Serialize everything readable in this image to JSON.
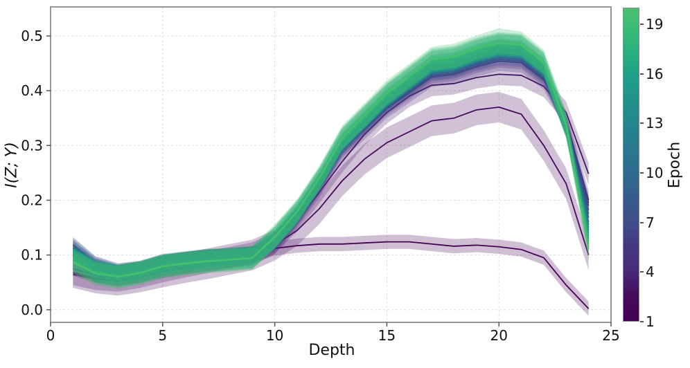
{
  "chart_data": {
    "type": "line",
    "title": "",
    "xlabel": "Depth",
    "ylabel": "I(Z; Y)",
    "xlim": [
      0,
      25
    ],
    "ylim": [
      -0.023,
      0.553
    ],
    "xticks": [
      0,
      5,
      10,
      15,
      20,
      25
    ],
    "yticks": [
      0.0,
      0.1,
      0.2,
      0.3,
      0.4,
      0.5
    ],
    "grid": true,
    "legend_position": "colorbar-right",
    "x": [
      1,
      2,
      3,
      4,
      5,
      6,
      7,
      8,
      9,
      10,
      11,
      12,
      13,
      14,
      15,
      16,
      17,
      18,
      19,
      20,
      21,
      22,
      23,
      24
    ],
    "series": [
      {
        "name": "Epoch 1",
        "epoch": 1,
        "color": "#440154",
        "band": 0.013,
        "values": [
          0.075,
          0.063,
          0.057,
          0.063,
          0.071,
          0.078,
          0.084,
          0.091,
          0.099,
          0.112,
          0.117,
          0.12,
          0.12,
          0.122,
          0.124,
          0.124,
          0.12,
          0.116,
          0.118,
          0.115,
          0.11,
          0.095,
          0.045,
          0.002
        ]
      },
      {
        "name": "Epoch 2",
        "epoch": 2,
        "color": "#46095b",
        "band": 0.028,
        "values": [
          0.068,
          0.058,
          0.054,
          0.06,
          0.069,
          0.077,
          0.084,
          0.092,
          0.1,
          0.118,
          0.145,
          0.185,
          0.235,
          0.275,
          0.305,
          0.325,
          0.345,
          0.35,
          0.365,
          0.37,
          0.357,
          0.3,
          0.23,
          0.1
        ]
      },
      {
        "name": "Epoch 3",
        "epoch": 3,
        "color": "#471365",
        "band": 0.02,
        "values": [
          0.065,
          0.056,
          0.053,
          0.06,
          0.07,
          0.079,
          0.087,
          0.095,
          0.103,
          0.122,
          0.163,
          0.215,
          0.27,
          0.32,
          0.36,
          0.39,
          0.41,
          0.413,
          0.424,
          0.43,
          0.428,
          0.408,
          0.36,
          0.248
        ]
      },
      {
        "name": "Epoch 4",
        "epoch": 4,
        "color": "#472a7a",
        "band": 0.018,
        "values": [
          0.09,
          0.068,
          0.061,
          0.068,
          0.08,
          0.086,
          0.091,
          0.094,
          0.098,
          0.12,
          0.167,
          0.224,
          0.291,
          0.329,
          0.368,
          0.396,
          0.425,
          0.43,
          0.444,
          0.454,
          0.451,
          0.42,
          0.345,
          0.2
        ]
      },
      {
        "name": "Epoch 5",
        "epoch": 5,
        "color": "#463480",
        "band": 0.015,
        "values": [
          0.105,
          0.075,
          0.065,
          0.071,
          0.083,
          0.089,
          0.094,
          0.096,
          0.1,
          0.121,
          0.168,
          0.226,
          0.293,
          0.332,
          0.37,
          0.399,
          0.428,
          0.433,
          0.447,
          0.457,
          0.454,
          0.423,
          0.342,
          0.195
        ]
      },
      {
        "name": "Epoch 6",
        "epoch": 6,
        "color": "#424086",
        "band": 0.014,
        "values": [
          0.113,
          0.08,
          0.068,
          0.074,
          0.086,
          0.091,
          0.096,
          0.098,
          0.101,
          0.122,
          0.169,
          0.227,
          0.295,
          0.334,
          0.373,
          0.402,
          0.431,
          0.436,
          0.45,
          0.46,
          0.457,
          0.426,
          0.34,
          0.19
        ]
      },
      {
        "name": "Epoch 7",
        "epoch": 7,
        "color": "#3d4c8a",
        "band": 0.014,
        "values": [
          0.119,
          0.084,
          0.071,
          0.076,
          0.088,
          0.093,
          0.097,
          0.099,
          0.102,
          0.123,
          0.17,
          0.229,
          0.297,
          0.336,
          0.375,
          0.404,
          0.433,
          0.438,
          0.453,
          0.463,
          0.46,
          0.429,
          0.338,
          0.182
        ]
      },
      {
        "name": "Epoch 8",
        "epoch": 8,
        "color": "#38568c",
        "band": 0.014,
        "values": [
          0.117,
          0.083,
          0.07,
          0.075,
          0.087,
          0.092,
          0.096,
          0.098,
          0.101,
          0.124,
          0.172,
          0.23,
          0.299,
          0.338,
          0.377,
          0.407,
          0.436,
          0.441,
          0.456,
          0.466,
          0.463,
          0.431,
          0.336,
          0.175
        ]
      },
      {
        "name": "Epoch 9",
        "epoch": 9,
        "color": "#33608d",
        "band": 0.014,
        "values": [
          0.112,
          0.08,
          0.068,
          0.074,
          0.086,
          0.091,
          0.095,
          0.097,
          0.1,
          0.125,
          0.172,
          0.231,
          0.3,
          0.34,
          0.379,
          0.409,
          0.438,
          0.443,
          0.458,
          0.468,
          0.465,
          0.433,
          0.334,
          0.168
        ]
      },
      {
        "name": "Epoch 10",
        "epoch": 10,
        "color": "#2e6a8e",
        "band": 0.014,
        "values": [
          0.108,
          0.078,
          0.067,
          0.073,
          0.085,
          0.09,
          0.094,
          0.096,
          0.099,
          0.126,
          0.173,
          0.233,
          0.302,
          0.342,
          0.381,
          0.411,
          0.441,
          0.446,
          0.46,
          0.47,
          0.467,
          0.436,
          0.332,
          0.16
        ]
      },
      {
        "name": "Epoch 11",
        "epoch": 11,
        "color": "#2a738e",
        "band": 0.014,
        "values": [
          0.105,
          0.076,
          0.066,
          0.072,
          0.084,
          0.089,
          0.093,
          0.095,
          0.099,
          0.126,
          0.174,
          0.234,
          0.303,
          0.343,
          0.383,
          0.413,
          0.442,
          0.447,
          0.462,
          0.472,
          0.469,
          0.437,
          0.331,
          0.155
        ]
      },
      {
        "name": "Epoch 12",
        "epoch": 12,
        "color": "#267c8e",
        "band": 0.014,
        "values": [
          0.102,
          0.074,
          0.065,
          0.071,
          0.083,
          0.088,
          0.092,
          0.095,
          0.098,
          0.127,
          0.175,
          0.235,
          0.304,
          0.344,
          0.384,
          0.414,
          0.444,
          0.449,
          0.464,
          0.474,
          0.471,
          0.439,
          0.33,
          0.15
        ]
      },
      {
        "name": "Epoch 13",
        "epoch": 13,
        "color": "#23858d",
        "band": 0.014,
        "values": [
          0.1,
          0.073,
          0.064,
          0.07,
          0.082,
          0.087,
          0.092,
          0.094,
          0.098,
          0.128,
          0.175,
          0.235,
          0.306,
          0.346,
          0.386,
          0.416,
          0.446,
          0.451,
          0.466,
          0.476,
          0.473,
          0.441,
          0.33,
          0.145
        ]
      },
      {
        "name": "Epoch 14",
        "epoch": 14,
        "color": "#218e8c",
        "band": 0.016,
        "values": [
          0.098,
          0.072,
          0.063,
          0.07,
          0.082,
          0.087,
          0.091,
          0.094,
          0.097,
          0.129,
          0.176,
          0.236,
          0.307,
          0.347,
          0.387,
          0.418,
          0.448,
          0.453,
          0.468,
          0.478,
          0.475,
          0.443,
          0.331,
          0.14
        ]
      },
      {
        "name": "Epoch 15",
        "epoch": 15,
        "color": "#1f978b",
        "band": 0.016,
        "values": [
          0.096,
          0.071,
          0.063,
          0.069,
          0.081,
          0.086,
          0.091,
          0.093,
          0.097,
          0.129,
          0.177,
          0.237,
          0.308,
          0.348,
          0.389,
          0.419,
          0.449,
          0.455,
          0.47,
          0.48,
          0.477,
          0.444,
          0.332,
          0.135
        ]
      },
      {
        "name": "Epoch 16",
        "epoch": 16,
        "color": "#1fa088",
        "band": 0.02,
        "values": [
          0.094,
          0.07,
          0.062,
          0.069,
          0.081,
          0.086,
          0.09,
          0.093,
          0.096,
          0.13,
          0.177,
          0.238,
          0.309,
          0.35,
          0.39,
          0.421,
          0.451,
          0.456,
          0.472,
          0.482,
          0.479,
          0.446,
          0.333,
          0.13
        ]
      },
      {
        "name": "Epoch 17",
        "epoch": 17,
        "color": "#24a983",
        "band": 0.02,
        "values": [
          0.092,
          0.069,
          0.062,
          0.068,
          0.08,
          0.085,
          0.09,
          0.092,
          0.096,
          0.131,
          0.178,
          0.239,
          0.31,
          0.351,
          0.392,
          0.422,
          0.453,
          0.458,
          0.473,
          0.484,
          0.481,
          0.448,
          0.334,
          0.125
        ]
      },
      {
        "name": "Epoch 18",
        "epoch": 18,
        "color": "#2eb37c",
        "band": 0.02,
        "values": [
          0.09,
          0.068,
          0.061,
          0.068,
          0.08,
          0.085,
          0.089,
          0.092,
          0.095,
          0.132,
          0.179,
          0.24,
          0.312,
          0.353,
          0.393,
          0.424,
          0.455,
          0.46,
          0.475,
          0.485,
          0.482,
          0.45,
          0.336,
          0.12
        ]
      },
      {
        "name": "Epoch 19",
        "epoch": 19,
        "color": "#3dbc74",
        "band": 0.022,
        "values": [
          0.088,
          0.067,
          0.06,
          0.067,
          0.079,
          0.084,
          0.089,
          0.091,
          0.095,
          0.134,
          0.18,
          0.242,
          0.314,
          0.355,
          0.397,
          0.427,
          0.458,
          0.464,
          0.479,
          0.492,
          0.486,
          0.453,
          0.34,
          0.115
        ]
      },
      {
        "name": "Epoch 20",
        "epoch": 20,
        "color": "#4ac16d",
        "band": 0.02,
        "values": [
          0.086,
          0.066,
          0.06,
          0.067,
          0.079,
          0.084,
          0.088,
          0.091,
          0.094,
          0.133,
          0.18,
          0.241,
          0.313,
          0.354,
          0.395,
          0.426,
          0.457,
          0.462,
          0.477,
          0.487,
          0.484,
          0.451,
          0.338,
          0.11
        ]
      }
    ],
    "colorbar": {
      "label": "Epoch",
      "min": 1,
      "max": 20,
      "ticks": [
        1,
        4,
        7,
        10,
        13,
        16,
        19
      ],
      "gradient": [
        [
          "0%",
          "#440154"
        ],
        [
          "8%",
          "#46095c"
        ],
        [
          "16%",
          "#472a7a"
        ],
        [
          "24%",
          "#453882"
        ],
        [
          "32%",
          "#3d4e8a"
        ],
        [
          "40%",
          "#365c8d"
        ],
        [
          "47%",
          "#2e6a8e"
        ],
        [
          "55%",
          "#28788e"
        ],
        [
          "63%",
          "#23858d"
        ],
        [
          "71%",
          "#20928b"
        ],
        [
          "79%",
          "#1fa088"
        ],
        [
          "87%",
          "#2bb17d"
        ],
        [
          "95%",
          "#3dbc74"
        ],
        [
          "100%",
          "#4ac16d"
        ]
      ]
    },
    "style": {
      "grid_color": "#dcdcdc",
      "spine_color": "#8a8a8a",
      "tick_color": "#555555",
      "text_color": "#111111",
      "band_opacity": 0.25
    }
  }
}
